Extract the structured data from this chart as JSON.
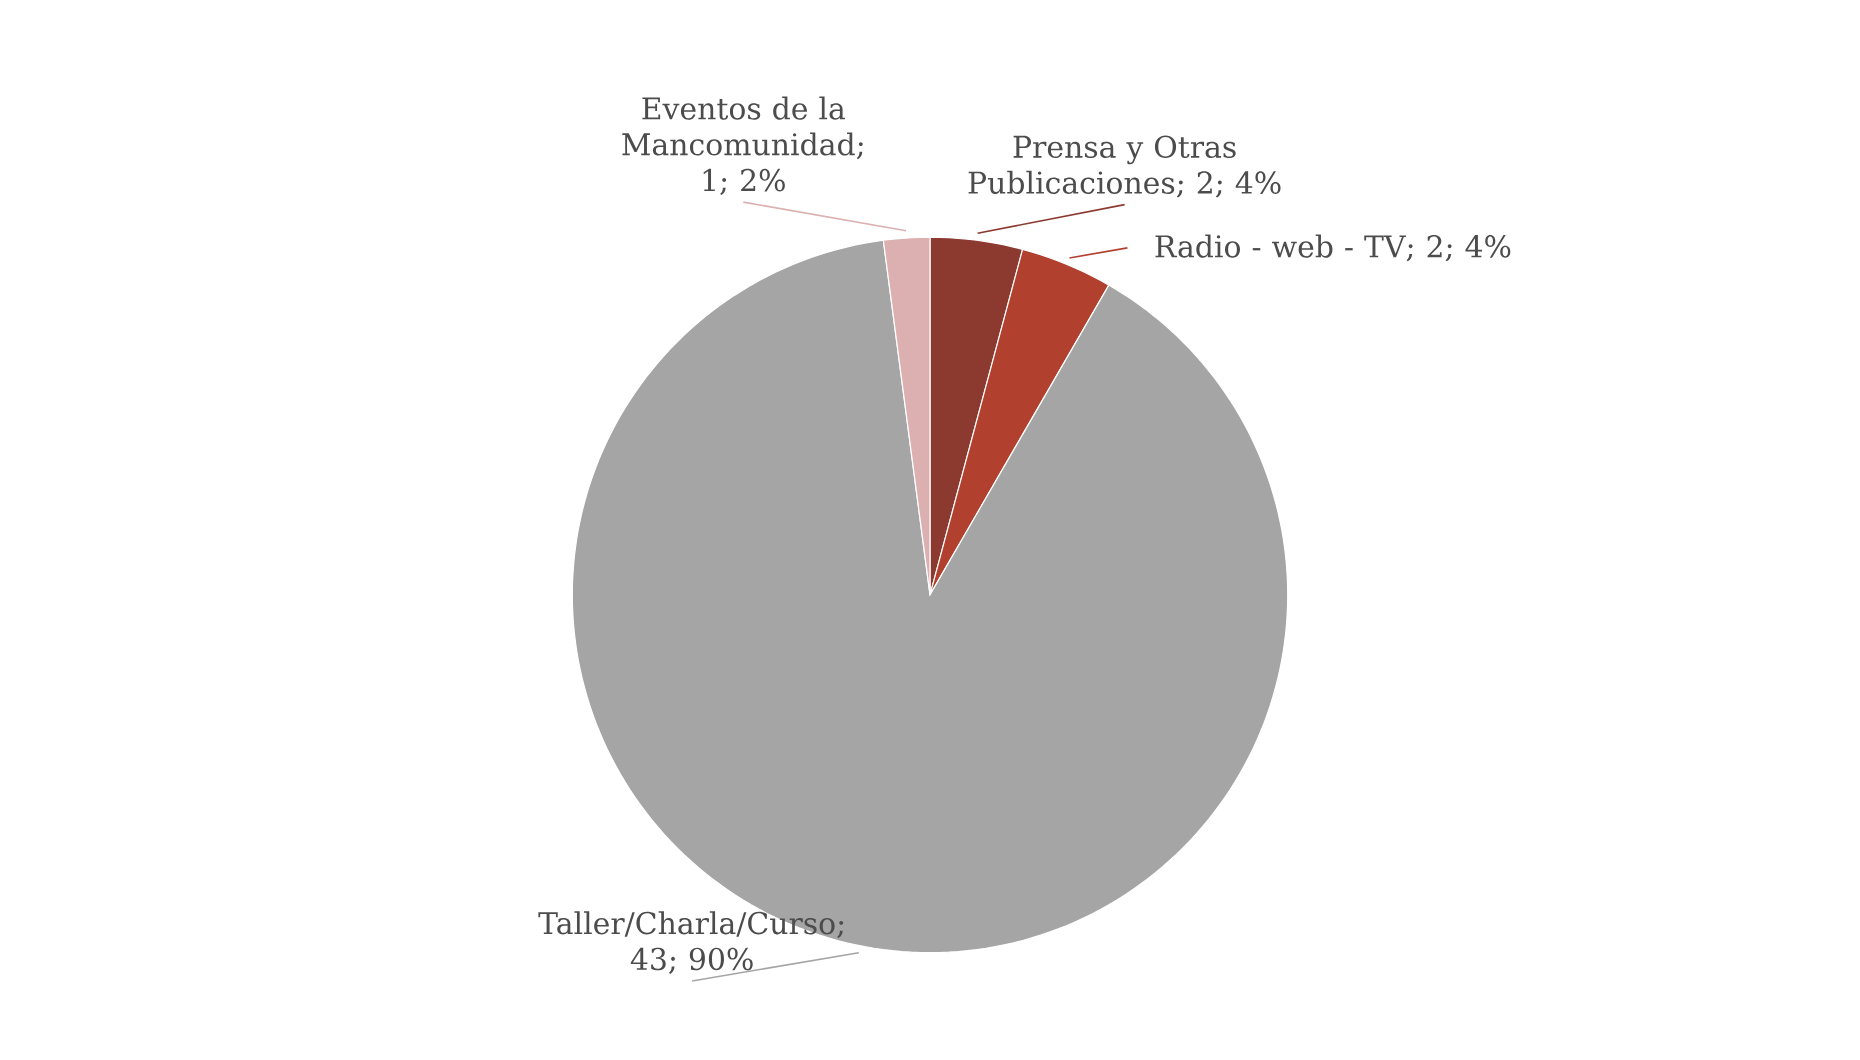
{
  "chart_data": {
    "type": "pie",
    "categories": [
      "Prensa y Otras Publicaciones",
      "Radio - web - TV",
      "Taller/Charla/Curso",
      "Eventos de la Mancomunidad"
    ],
    "values": [
      2,
      2,
      43,
      1
    ],
    "value_labels": [
      "; 2; 4%",
      "; 2; 4%",
      "; 43; 90%",
      "; 1; 2%"
    ],
    "colors": [
      "#8c3a30",
      "#b2402f",
      "#a5a5a5",
      "#dcb0b0"
    ]
  }
}
